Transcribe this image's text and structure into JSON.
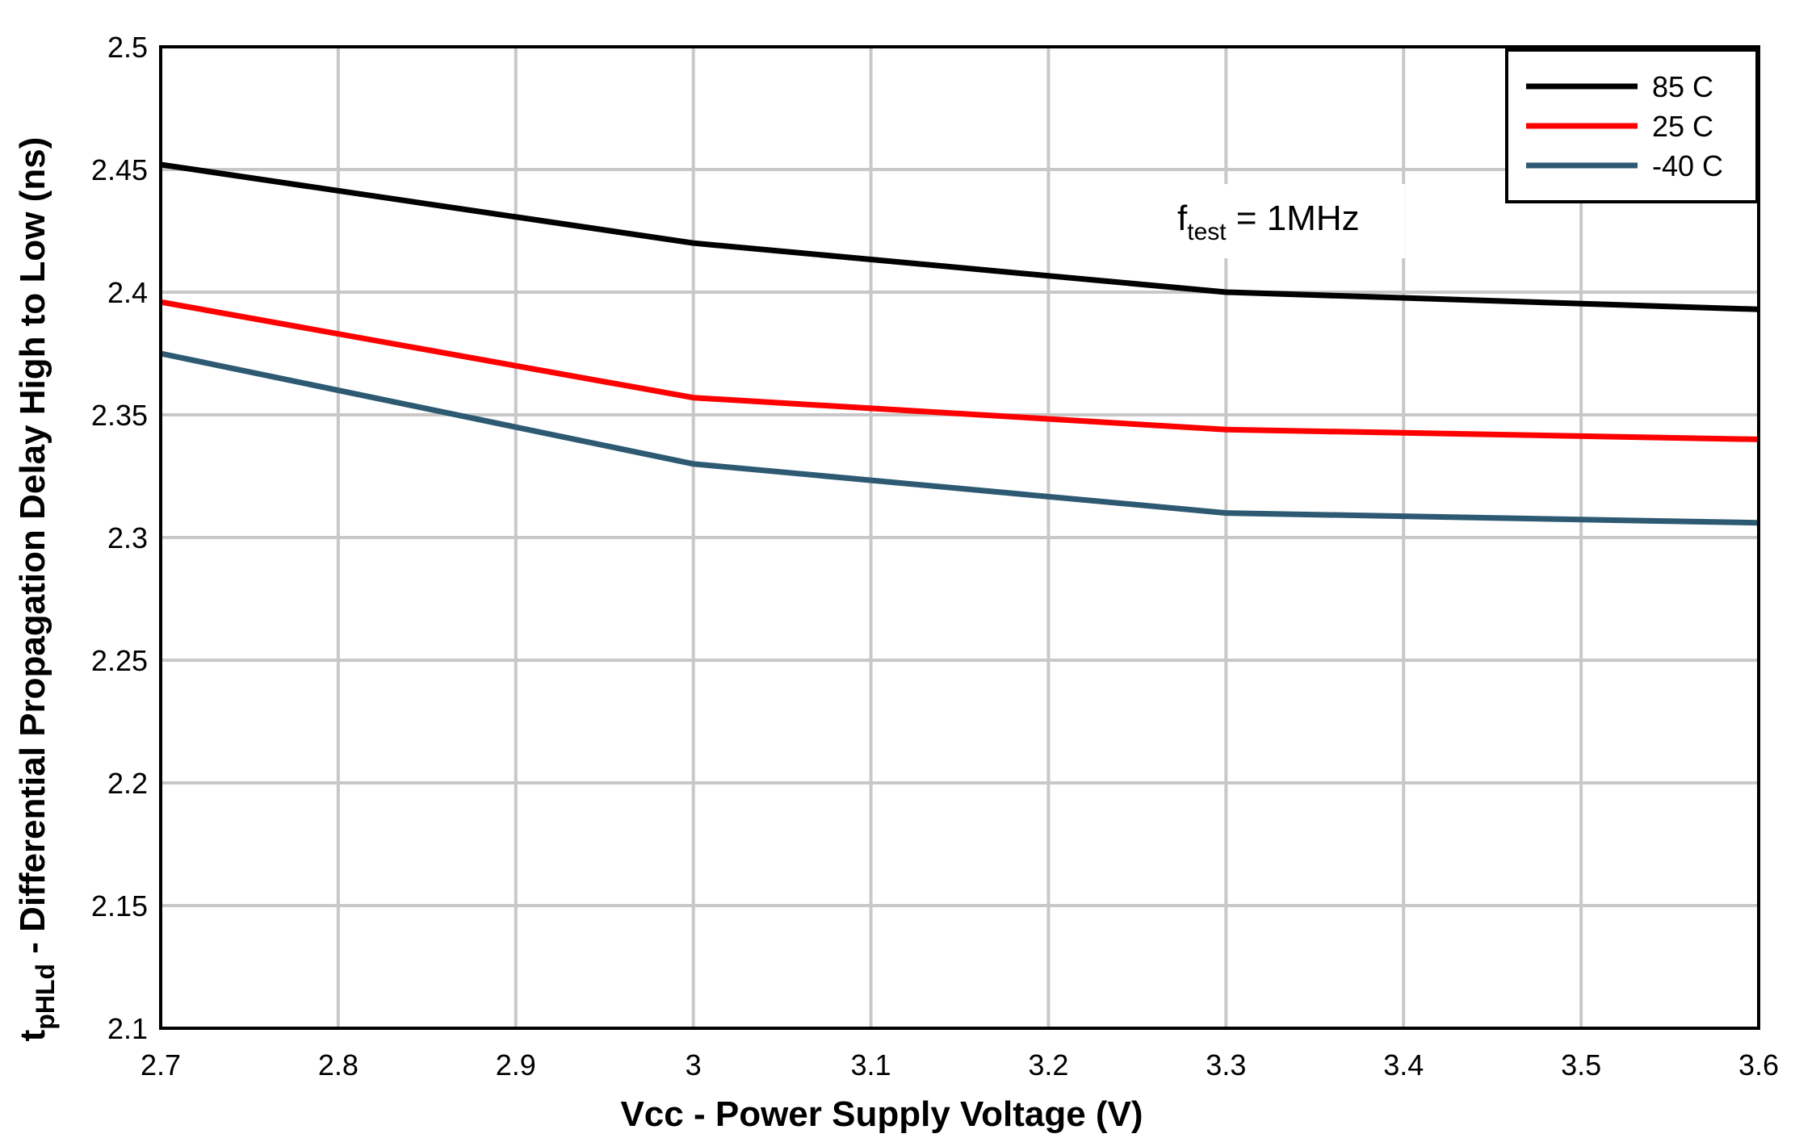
{
  "chart_data": {
    "type": "line",
    "xlabel": "Vcc - Power Supply Voltage  (V)",
    "ylabel": {
      "main": "t",
      "sub": "pHLd",
      "rest": " - Differential Propagation Delay High to Low (ns)"
    },
    "xlim": [
      2.7,
      3.6
    ],
    "ylim": [
      2.1,
      2.5
    ],
    "x_ticks": [
      2.7,
      2.8,
      2.9,
      3.0,
      3.1,
      3.2,
      3.3,
      3.4,
      3.5,
      3.6
    ],
    "x_tick_labels": [
      "2.7",
      "2.8",
      "2.9",
      "3",
      "3.1",
      "3.2",
      "3.3",
      "3.4",
      "3.5",
      "3.6"
    ],
    "y_ticks": [
      2.1,
      2.15,
      2.2,
      2.25,
      2.3,
      2.35,
      2.4,
      2.45,
      2.5
    ],
    "y_tick_labels": [
      "2.1",
      "2.15",
      "2.2",
      "2.25",
      "2.3",
      "2.35",
      "2.4",
      "2.45",
      "2.5"
    ],
    "grid": true,
    "legend_position": "top-right",
    "annotation": {
      "main": "f",
      "sub": "test",
      "rest": " = 1MHz"
    },
    "series": [
      {
        "name": "85 C",
        "color": "#000000",
        "x": [
          2.7,
          3.0,
          3.3,
          3.6
        ],
        "values": [
          2.452,
          2.42,
          2.4,
          2.393
        ]
      },
      {
        "name": "25 C",
        "color": "#ff0000",
        "x": [
          2.7,
          3.0,
          3.3,
          3.6
        ],
        "values": [
          2.396,
          2.357,
          2.344,
          2.34
        ]
      },
      {
        "name": "-40 C",
        "color": "#2d5a72",
        "x": [
          2.7,
          3.0,
          3.3,
          3.6
        ],
        "values": [
          2.375,
          2.33,
          2.31,
          2.306
        ]
      }
    ]
  }
}
